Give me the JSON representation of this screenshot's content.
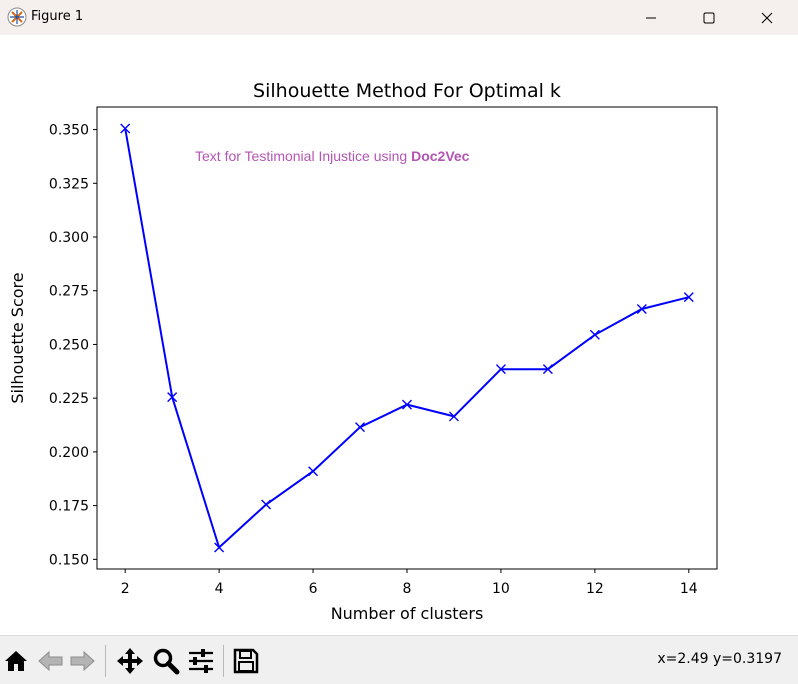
{
  "window": {
    "title": "Figure 1",
    "icons": {
      "app": "figure-app-icon",
      "minimize": "minimize-icon",
      "maximize": "maximize-icon",
      "close": "close-icon"
    }
  },
  "chart_data": {
    "type": "line",
    "title": "Silhouette Method For Optimal k",
    "xlabel": "Number of clusters",
    "ylabel": "Silhouette Score",
    "x": [
      2,
      3,
      4,
      5,
      6,
      7,
      8,
      9,
      10,
      11,
      12,
      13,
      14
    ],
    "series": [
      {
        "values": [
          0.3505,
          0.2255,
          0.1555,
          0.1755,
          0.191,
          0.2115,
          0.222,
          0.2165,
          0.2385,
          0.2385,
          0.2545,
          0.2665,
          0.272
        ],
        "color": "#0000ff",
        "marker": "x"
      }
    ],
    "xticks": [
      2,
      4,
      6,
      8,
      10,
      12,
      14
    ],
    "xtick_labels": [
      "2",
      "4",
      "6",
      "8",
      "10",
      "12",
      "14"
    ],
    "yticks": [
      0.15,
      0.175,
      0.2,
      0.225,
      0.25,
      0.275,
      0.3,
      0.325,
      0.35
    ],
    "ytick_labels": [
      "0.150",
      "0.175",
      "0.200",
      "0.225",
      "0.250",
      "0.275",
      "0.300",
      "0.325",
      "0.350"
    ],
    "xlim": [
      1.4,
      14.6
    ],
    "ylim": [
      0.1455,
      0.3605
    ],
    "grid": false,
    "annotation": {
      "text_regular": "Text for Testimonial Injustice using ",
      "text_bold": "Doc2Vec",
      "color": "#b455b4"
    }
  },
  "toolbar": {
    "tools": [
      {
        "name": "home-icon",
        "interactable": true
      },
      {
        "name": "back-icon",
        "interactable": true
      },
      {
        "name": "forward-icon",
        "interactable": true
      },
      {
        "name": "pan-icon",
        "interactable": true
      },
      {
        "name": "zoom-icon",
        "interactable": true
      },
      {
        "name": "configure-subplots-icon",
        "interactable": true
      },
      {
        "name": "save-icon",
        "interactable": true
      }
    ],
    "coords": "x=2.49 y=0.3197"
  }
}
